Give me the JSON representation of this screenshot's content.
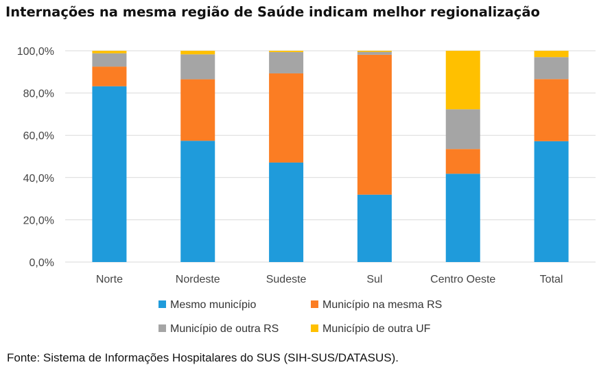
{
  "title": "Internações na mesma região de Saúde indicam melhor regionalização",
  "source": "Fonte: Sistema de Informações Hospitalares do SUS (SIH-SUS/DATASUS).",
  "chart_data": {
    "type": "bar",
    "stacked": true,
    "categories": [
      "Norte",
      "Nordeste",
      "Sudeste",
      "Sul",
      "Centro Oeste",
      "Total"
    ],
    "series": [
      {
        "name": "Mesmo município",
        "color": "#1f9bdb",
        "values": [
          83.2,
          57.4,
          47.1,
          31.9,
          41.8,
          57.2
        ]
      },
      {
        "name": "Município na mesma RS",
        "color": "#fb7d23",
        "values": [
          9.3,
          29.1,
          42.2,
          66.2,
          11.7,
          29.4
        ]
      },
      {
        "name": "Município de outra RS",
        "color": "#a5a5a5",
        "values": [
          6.3,
          11.8,
          10.1,
          1.4,
          18.8,
          10.4
        ]
      },
      {
        "name": "Município de outra UF",
        "color": "#ffc000",
        "values": [
          1.2,
          1.7,
          0.6,
          0.5,
          27.7,
          3.0
        ]
      }
    ],
    "yticks": [
      "0,0%",
      "20,0%",
      "40,0%",
      "60,0%",
      "80,0%",
      "100,0%"
    ],
    "ylim": [
      0,
      100
    ],
    "grid": true,
    "legend_position": "bottom"
  }
}
